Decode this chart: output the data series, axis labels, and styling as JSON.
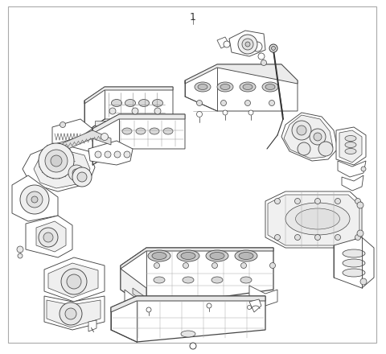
{
  "background_color": "#ffffff",
  "border_color": "#aaaaaa",
  "line_color": "#444444",
  "fig_width": 4.8,
  "fig_height": 4.4,
  "dpi": 100,
  "label_text": "1",
  "label_fontsize": 9
}
